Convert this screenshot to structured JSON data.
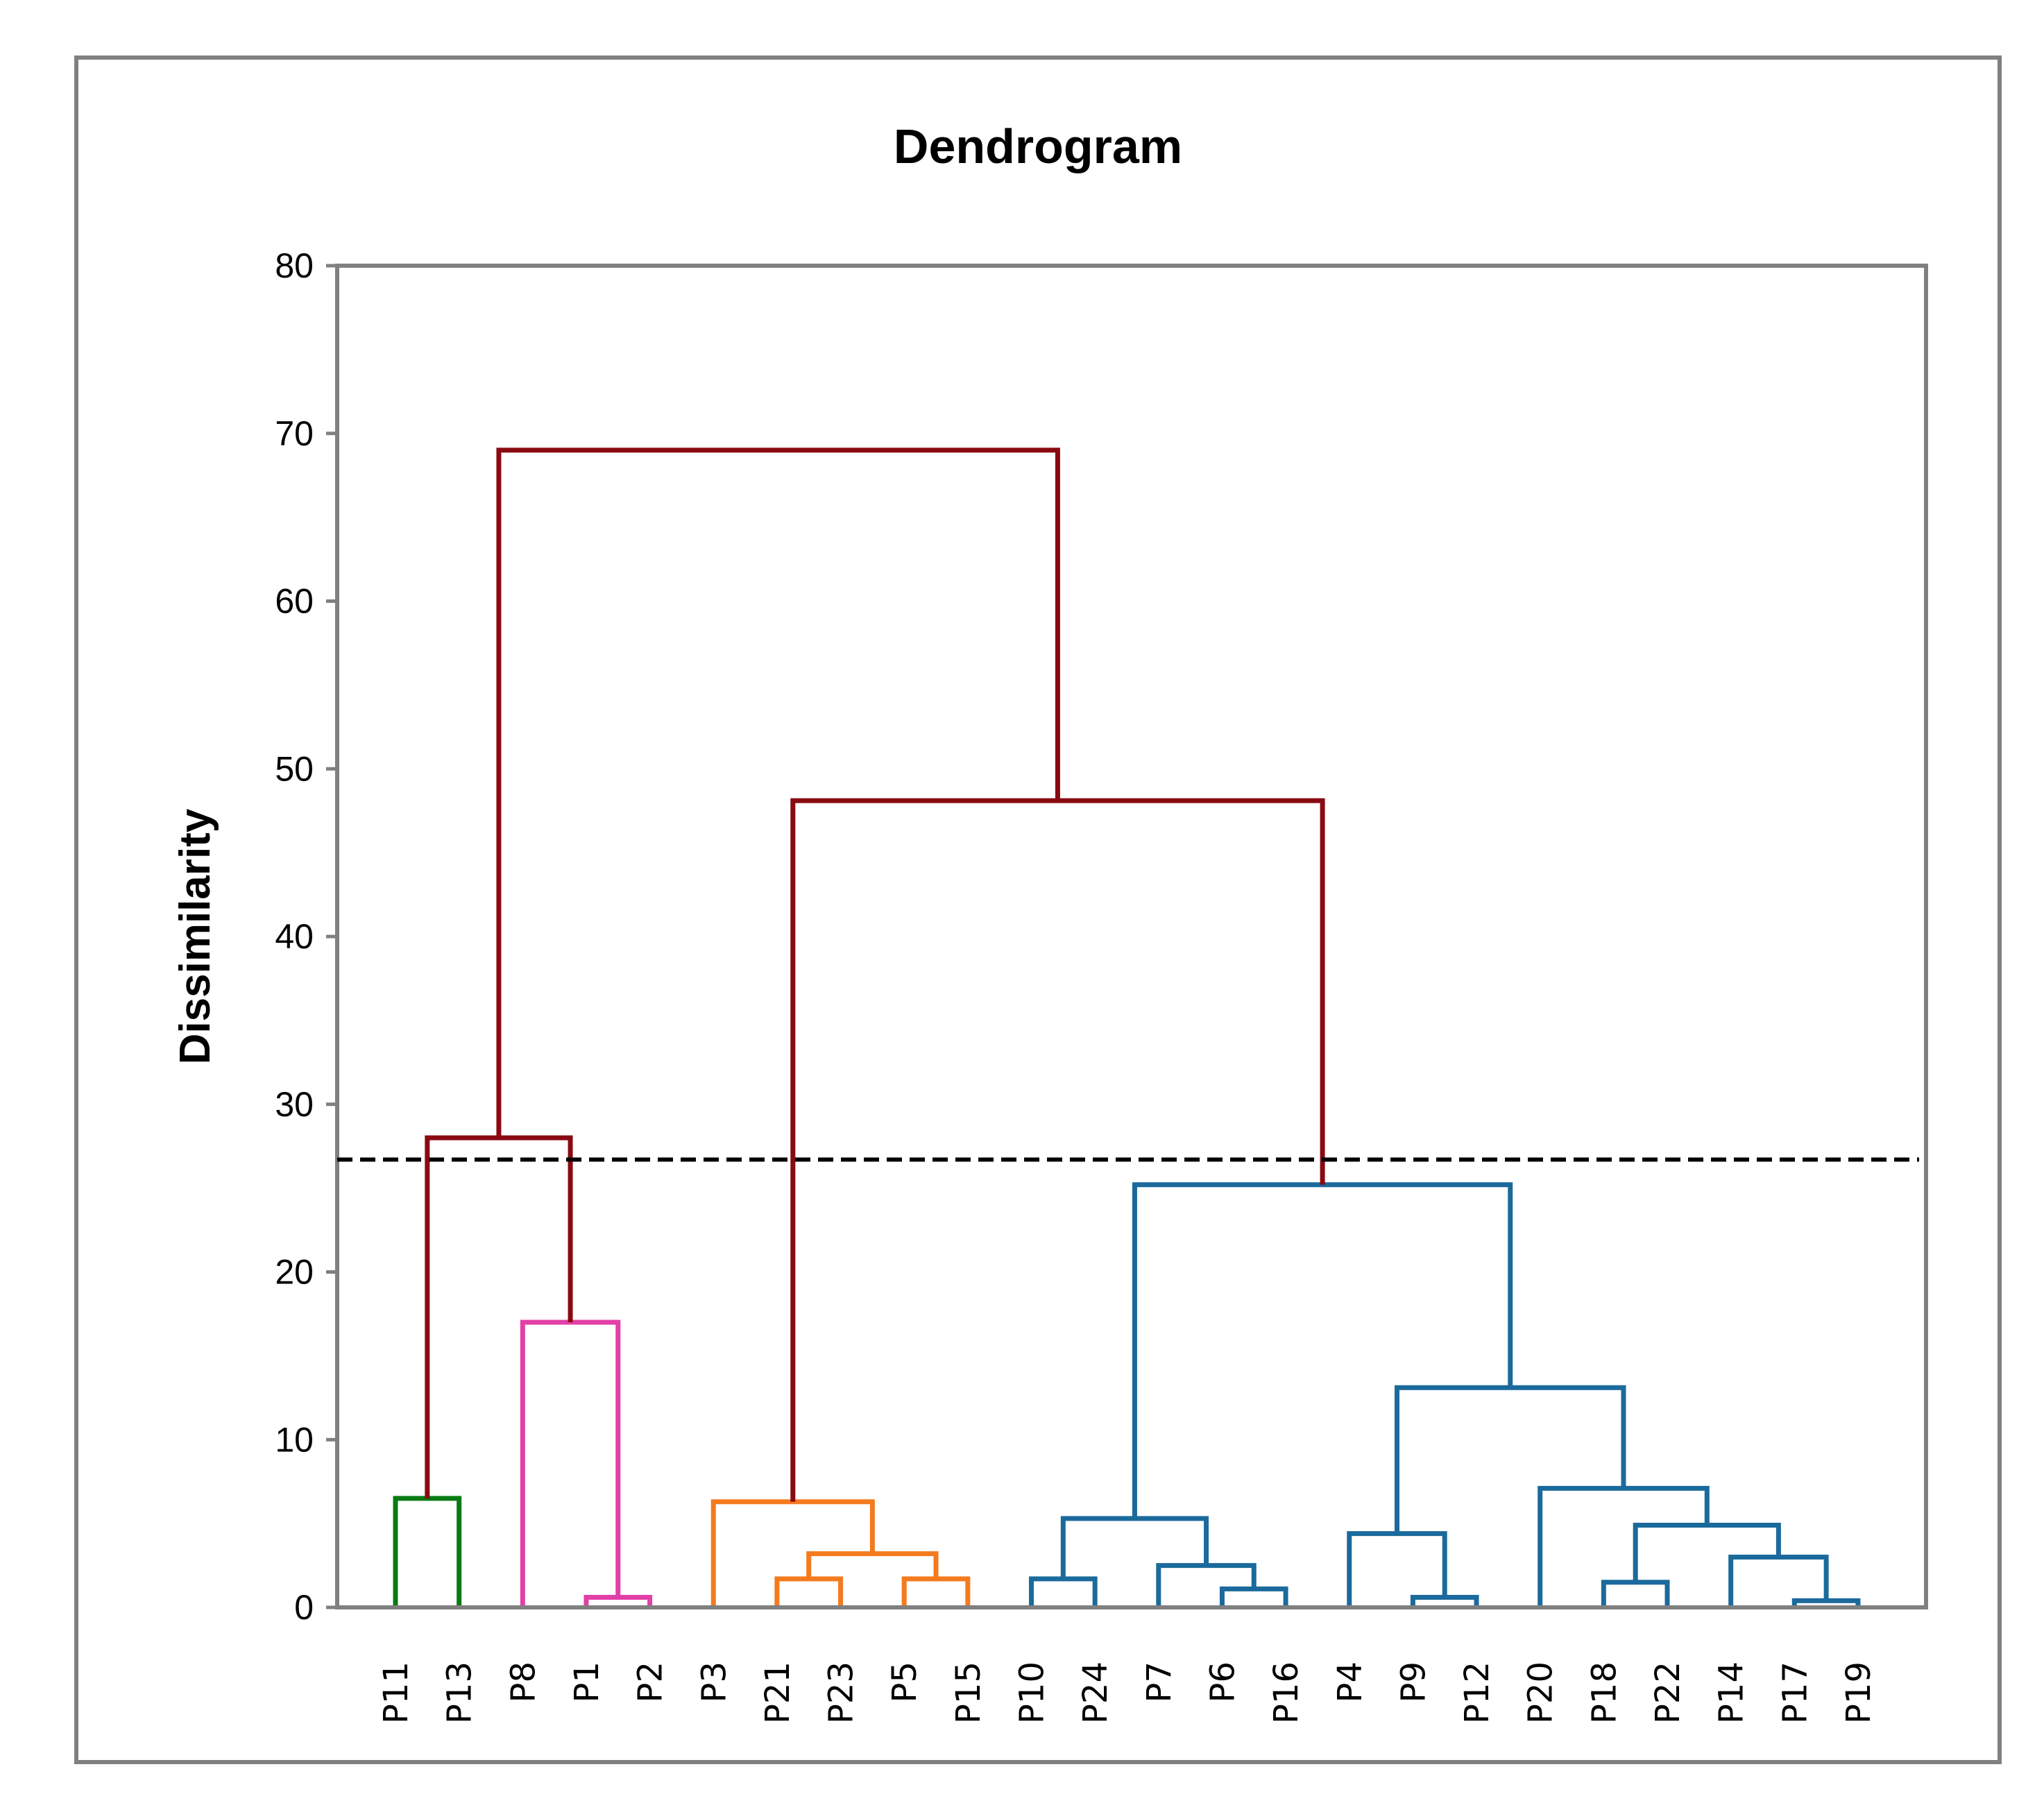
{
  "chart_data": {
    "type": "dendrogram",
    "title": "Dendrogram",
    "ylabel": "Dissimilarity",
    "xlabel": "",
    "ylim": [
      0,
      80
    ],
    "yticks": [
      0,
      10,
      20,
      30,
      40,
      50,
      60,
      70,
      80
    ],
    "leaves": [
      "P11",
      "P13",
      "P8",
      "P1",
      "P2",
      "P3",
      "P21",
      "P23",
      "P5",
      "P15",
      "P10",
      "P24",
      "P7",
      "P6",
      "P16",
      "P4",
      "P9",
      "P12",
      "P20",
      "P18",
      "P22",
      "P14",
      "P17",
      "P19"
    ],
    "cutoff": 26.7,
    "cutoff_style": "dashed",
    "colors": {
      "green": "#0a7a12",
      "pink": "#e23fa7",
      "orange": "#f47a1e",
      "blue": "#1b6a9c",
      "darkred": "#8a0a12",
      "cutoff": "#000000"
    },
    "merges": [
      {
        "a": "P11",
        "b": "P13",
        "height": 6.5,
        "color": "green"
      },
      {
        "a": "P1",
        "b": "P2",
        "height": 0.6,
        "color": "pink"
      },
      {
        "a": "P8",
        "b": "m2",
        "height": 17.0,
        "color": "pink"
      },
      {
        "a": "P21",
        "b": "P23",
        "height": 1.7,
        "color": "orange"
      },
      {
        "a": "P5",
        "b": "P15",
        "height": 1.7,
        "color": "orange"
      },
      {
        "a": "m4",
        "b": "m5",
        "height": 3.2,
        "color": "orange"
      },
      {
        "a": "P3",
        "b": "m6",
        "height": 6.3,
        "color": "orange"
      },
      {
        "a": "P10",
        "b": "P24",
        "height": 1.7,
        "color": "blue"
      },
      {
        "a": "P6",
        "b": "P16",
        "height": 1.1,
        "color": "blue"
      },
      {
        "a": "P7",
        "b": "m9",
        "height": 2.5,
        "color": "blue"
      },
      {
        "a": "m8",
        "b": "m10",
        "height": 5.3,
        "color": "blue"
      },
      {
        "a": "P9",
        "b": "P12",
        "height": 0.6,
        "color": "blue"
      },
      {
        "a": "P4",
        "b": "m12",
        "height": 4.4,
        "color": "blue"
      },
      {
        "a": "P18",
        "b": "P22",
        "height": 1.5,
        "color": "blue"
      },
      {
        "a": "P17",
        "b": "P19",
        "height": 0.4,
        "color": "blue"
      },
      {
        "a": "P14",
        "b": "m15",
        "height": 3.0,
        "color": "blue"
      },
      {
        "a": "m14",
        "b": "m16",
        "height": 4.9,
        "color": "blue"
      },
      {
        "a": "P20",
        "b": "m17",
        "height": 7.1,
        "color": "blue"
      },
      {
        "a": "m13",
        "b": "m18",
        "height": 13.1,
        "color": "blue"
      },
      {
        "a": "m11",
        "b": "m19",
        "height": 25.2,
        "color": "blue"
      },
      {
        "a": "m1",
        "b": "m3",
        "height": 28.0,
        "color": "darkred"
      },
      {
        "a": "m7",
        "b": "m20",
        "height": 48.1,
        "color": "darkred"
      },
      {
        "a": "m21",
        "b": "m22",
        "height": 69.0,
        "color": "darkred"
      }
    ]
  }
}
